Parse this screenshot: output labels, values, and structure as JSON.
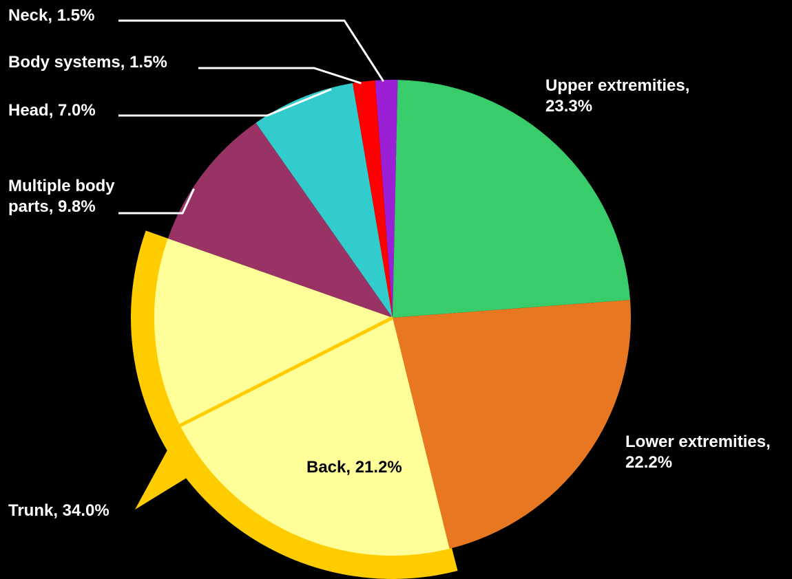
{
  "chart_data": {
    "type": "pie",
    "title": "",
    "slices": [
      {
        "key": "neck",
        "label": "Neck, 1.5%",
        "name": "Neck",
        "value": 1.5,
        "color": "#9b1fd4"
      },
      {
        "key": "upper",
        "label": "Upper extremities, 23.3%",
        "name": "Upper extremities",
        "value": 23.3,
        "color": "#38cc6a"
      },
      {
        "key": "lower",
        "label": "Lower extremities, 22.2%",
        "name": "Lower extremities",
        "value": 22.2,
        "color": "#e87722"
      },
      {
        "key": "trunk",
        "label": "Trunk, 34.0%",
        "name": "Trunk",
        "value": 34.0,
        "color": "#ffff99",
        "highlight_color": "#ffcc00",
        "sub_slices": [
          {
            "key": "back",
            "label": "Back, 21.2%",
            "name": "Back",
            "value": 21.2
          },
          {
            "key": "trunk-other",
            "label": "",
            "name": "",
            "value": 12.8
          }
        ]
      },
      {
        "key": "multiple",
        "label": "Multiple body parts, 9.8%",
        "label_lines": [
          "Multiple body",
          "parts, 9.8%"
        ],
        "name": "Multiple body parts",
        "value": 9.8,
        "color": "#993366"
      },
      {
        "key": "head",
        "label": "Head, 7.0%",
        "name": "Head",
        "value": 7.0,
        "color": "#33cccc"
      },
      {
        "key": "systems",
        "label": "Body systems, 1.5%",
        "name": "Body systems",
        "value": 1.5,
        "color": "#ff0000"
      }
    ],
    "background_color": "#000000",
    "label_color": "#ffffff",
    "legend": "none"
  },
  "labels": {
    "neck": "Neck, 1.5%",
    "systems": "Body systems, 1.5%",
    "head": "Head, 7.0%",
    "multiple_line1": "Multiple body",
    "multiple_line2": "parts, 9.8%",
    "upper_line1": "Upper extremities,",
    "upper_line2": "23.3%",
    "lower_line1": "Lower extremities,",
    "lower_line2": "22.2%",
    "trunk": "Trunk, 34.0%",
    "back": "Back, 21.2%"
  }
}
